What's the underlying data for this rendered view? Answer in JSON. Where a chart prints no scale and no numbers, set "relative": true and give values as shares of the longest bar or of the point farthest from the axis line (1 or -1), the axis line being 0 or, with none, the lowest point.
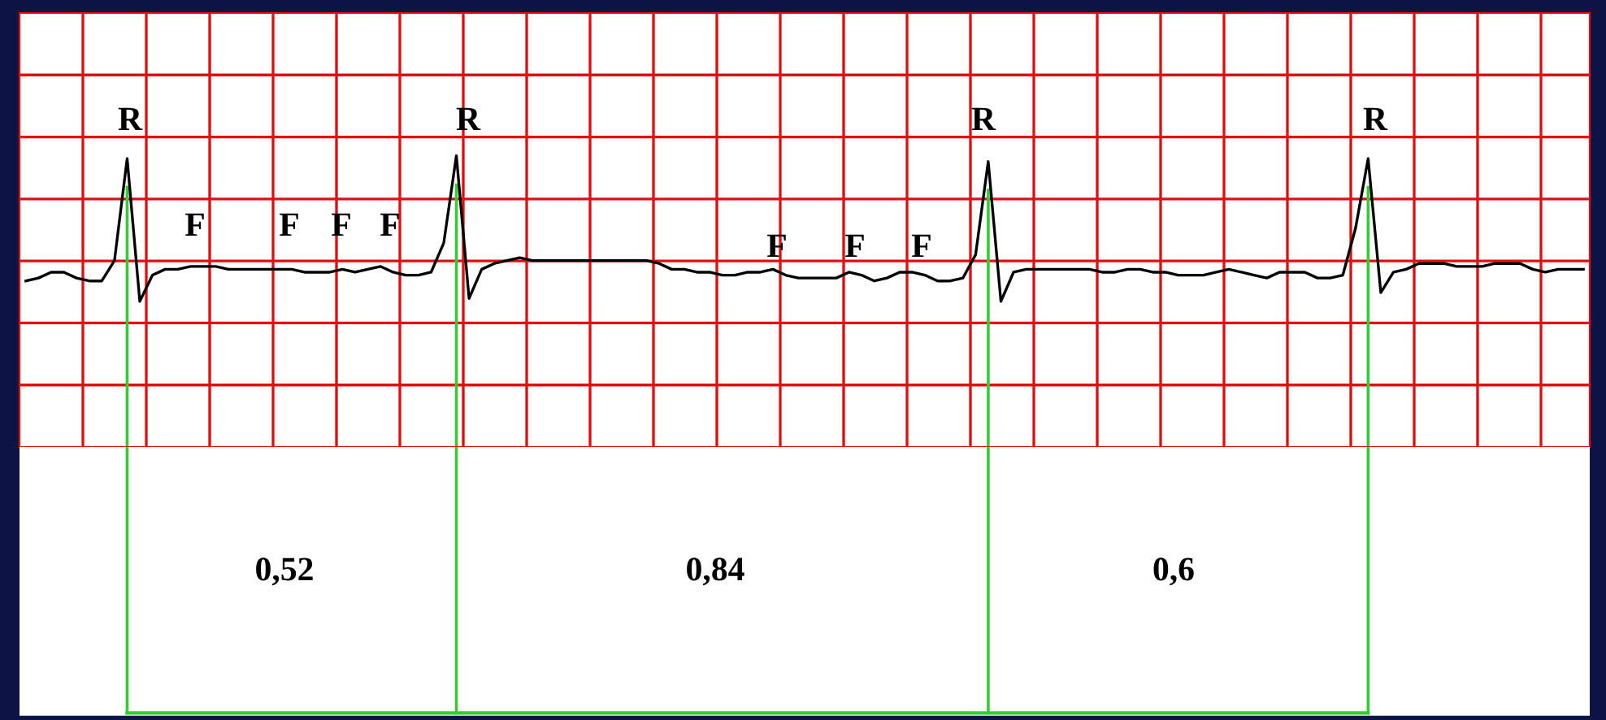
{
  "chart_data": {
    "type": "line",
    "relative": true,
    "grid": true,
    "categories": [
      null,
      null,
      null,
      null,
      null,
      null,
      null,
      null,
      null,
      null,
      null,
      null,
      null,
      null,
      null,
      null,
      null,
      null,
      null,
      null,
      null,
      null,
      null,
      null,
      null,
      null,
      null,
      null,
      null,
      null,
      null,
      null,
      null,
      null,
      null,
      null,
      null,
      null,
      null,
      null,
      null,
      null,
      null,
      null,
      null,
      null,
      null,
      null,
      null,
      null,
      null,
      null,
      null,
      null,
      null,
      null,
      null,
      null,
      null,
      null,
      null,
      null,
      null,
      null,
      null,
      null,
      null,
      null,
      null,
      null,
      null,
      null,
      null,
      null,
      null,
      null,
      null,
      null,
      null,
      null,
      null,
      null,
      null,
      null,
      null,
      null,
      null,
      null,
      null,
      null,
      null,
      null,
      null,
      null,
      null,
      null,
      null,
      null,
      null,
      null,
      null,
      null,
      null,
      null,
      null,
      null,
      null,
      null,
      null,
      null,
      null,
      null,
      null,
      null,
      null,
      null,
      null,
      null,
      null,
      null,
      null,
      null,
      null,
      null
    ],
    "series": [
      {
        "color": "#000000",
        "values": [
          0.57,
          0.58,
          0.6,
          0.6,
          0.58,
          0.57,
          0.57,
          0.64,
          0.99,
          0.5,
          0.59,
          0.61,
          0.61,
          0.62,
          0.62,
          0.62,
          0.61,
          0.61,
          0.61,
          0.61,
          0.61,
          0.61,
          0.6,
          0.6,
          0.6,
          0.61,
          0.6,
          0.61,
          0.62,
          0.6,
          0.59,
          0.59,
          0.6,
          0.7,
          1.0,
          0.51,
          0.61,
          0.63,
          0.64,
          0.65,
          0.64,
          0.64,
          0.64,
          0.64,
          0.64,
          0.64,
          0.64,
          0.64,
          0.64,
          0.64,
          0.63,
          0.61,
          0.61,
          0.6,
          0.6,
          0.59,
          0.59,
          0.6,
          0.6,
          0.61,
          0.59,
          0.58,
          0.58,
          0.58,
          0.58,
          0.6,
          0.59,
          0.57,
          0.58,
          0.6,
          0.6,
          0.59,
          0.57,
          0.57,
          0.58,
          0.66,
          0.98,
          0.5,
          0.6,
          0.61,
          0.61,
          0.61,
          0.61,
          0.61,
          0.61,
          0.6,
          0.6,
          0.61,
          0.61,
          0.6,
          0.6,
          0.59,
          0.59,
          0.59,
          0.6,
          0.61,
          0.6,
          0.59,
          0.58,
          0.6,
          0.6,
          0.6,
          0.58,
          0.58,
          0.59,
          0.75,
          0.99,
          0.53,
          0.6,
          0.61,
          0.63,
          0.63,
          0.63,
          0.62,
          0.62,
          0.62,
          0.63,
          0.63,
          0.63,
          0.61,
          0.6,
          0.61,
          0.61,
          0.61
        ]
      }
    ],
    "annotations": [
      "R",
      "R",
      "R",
      "R",
      "F",
      "F",
      "F",
      "F",
      "F",
      "F",
      "F",
      "0,52",
      "0,84",
      "0,6"
    ]
  }
}
